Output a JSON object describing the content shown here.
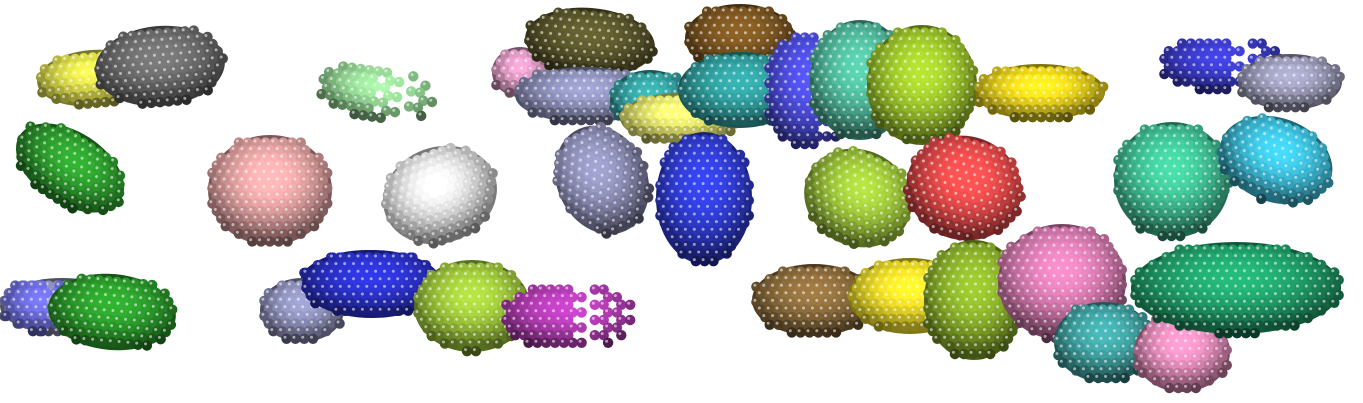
{
  "scene": {
    "background": "#ffffff",
    "clusters": [
      {
        "name": "yellow-disc",
        "color": "#d8d84a",
        "shape": "dense"
      },
      {
        "name": "gray-disc",
        "color": "#6a6a6a",
        "shape": "dense"
      },
      {
        "name": "light-green-ring",
        "color": "#93d493",
        "shape": "ring"
      },
      {
        "name": "green-disc",
        "color": "#2c9a2c",
        "shape": "dense"
      },
      {
        "name": "pink-disc",
        "color": "#e1a0a0",
        "shape": "dense"
      },
      {
        "name": "white-disc",
        "color": "#dcdcdc",
        "shape": "dense"
      },
      {
        "name": "slate-disc-left",
        "color": "#8c8fb8",
        "shape": "dense"
      },
      {
        "name": "navy-disc",
        "color": "#2a33c8",
        "shape": "dense"
      },
      {
        "name": "pink-ring-small",
        "color": "#d995be",
        "shape": "dense"
      },
      {
        "name": "olive-disc",
        "color": "#59552a",
        "shape": "dense"
      },
      {
        "name": "slate-disc-mid",
        "color": "#8c8fb8",
        "shape": "dense"
      },
      {
        "name": "teal-ring",
        "color": "#35a0a0",
        "shape": "dense"
      },
      {
        "name": "yellow-under",
        "color": "#e2e26a",
        "shape": "dense"
      },
      {
        "name": "brown-disc-top",
        "color": "#7a5420",
        "shape": "dense"
      },
      {
        "name": "teal-disc-top",
        "color": "#2f9a9a",
        "shape": "dense"
      },
      {
        "name": "blue-ring-top",
        "color": "#4a4ad8",
        "shape": "ring"
      },
      {
        "name": "teal-mint-disc",
        "color": "#4fb79a",
        "shape": "dense"
      },
      {
        "name": "lime-disc-top",
        "color": "#9cc42a",
        "shape": "dense"
      },
      {
        "name": "yellow-disc-top",
        "color": "#e8d21a",
        "shape": "dense"
      },
      {
        "name": "blue-ring-right",
        "color": "#3a3ac8",
        "shape": "ring"
      },
      {
        "name": "slate-disc-right",
        "color": "#9a9ab8",
        "shape": "dense"
      },
      {
        "name": "slate-disc-center",
        "color": "#8b8cb3",
        "shape": "dense"
      },
      {
        "name": "blue-disc-center",
        "color": "#2f3bd2",
        "shape": "dense"
      },
      {
        "name": "lime-disc-center",
        "color": "#9cc43a",
        "shape": "dense"
      },
      {
        "name": "red-disc",
        "color": "#e24848",
        "shape": "dense"
      },
      {
        "name": "mint-disc-right",
        "color": "#3fbf93",
        "shape": "dense"
      },
      {
        "name": "cyan-disc",
        "color": "#3cbcd8",
        "shape": "dense"
      },
      {
        "name": "blue-ring-bottom",
        "color": "#6a6ad8",
        "shape": "ring"
      },
      {
        "name": "green-disc-bottom",
        "color": "#2a9a2a",
        "shape": "dense"
      },
      {
        "name": "slate-disc-bottom",
        "color": "#8c8fb8",
        "shape": "dense"
      },
      {
        "name": "blue-disc-bottom",
        "color": "#2a30c8",
        "shape": "dense"
      },
      {
        "name": "lime-disc-bottom",
        "color": "#9cc43a",
        "shape": "dense"
      },
      {
        "name": "purple-ring",
        "color": "#b03bb0",
        "shape": "ring"
      },
      {
        "name": "brown-disc-bottom",
        "color": "#8a6a3a",
        "shape": "dense"
      },
      {
        "name": "yellow-disc-bottom",
        "color": "#e6d626",
        "shape": "dense"
      },
      {
        "name": "olive-green-disc",
        "color": "#8ab02a",
        "shape": "dense"
      },
      {
        "name": "pink-disc-bottom",
        "color": "#d67ab0",
        "shape": "dense"
      },
      {
        "name": "teal-disc-bottom",
        "color": "#3f9f9f",
        "shape": "dense"
      },
      {
        "name": "pink-disc-small",
        "color": "#e18ab8",
        "shape": "dense"
      },
      {
        "name": "green-disc-right",
        "color": "#1fa06a",
        "shape": "dense"
      }
    ]
  }
}
